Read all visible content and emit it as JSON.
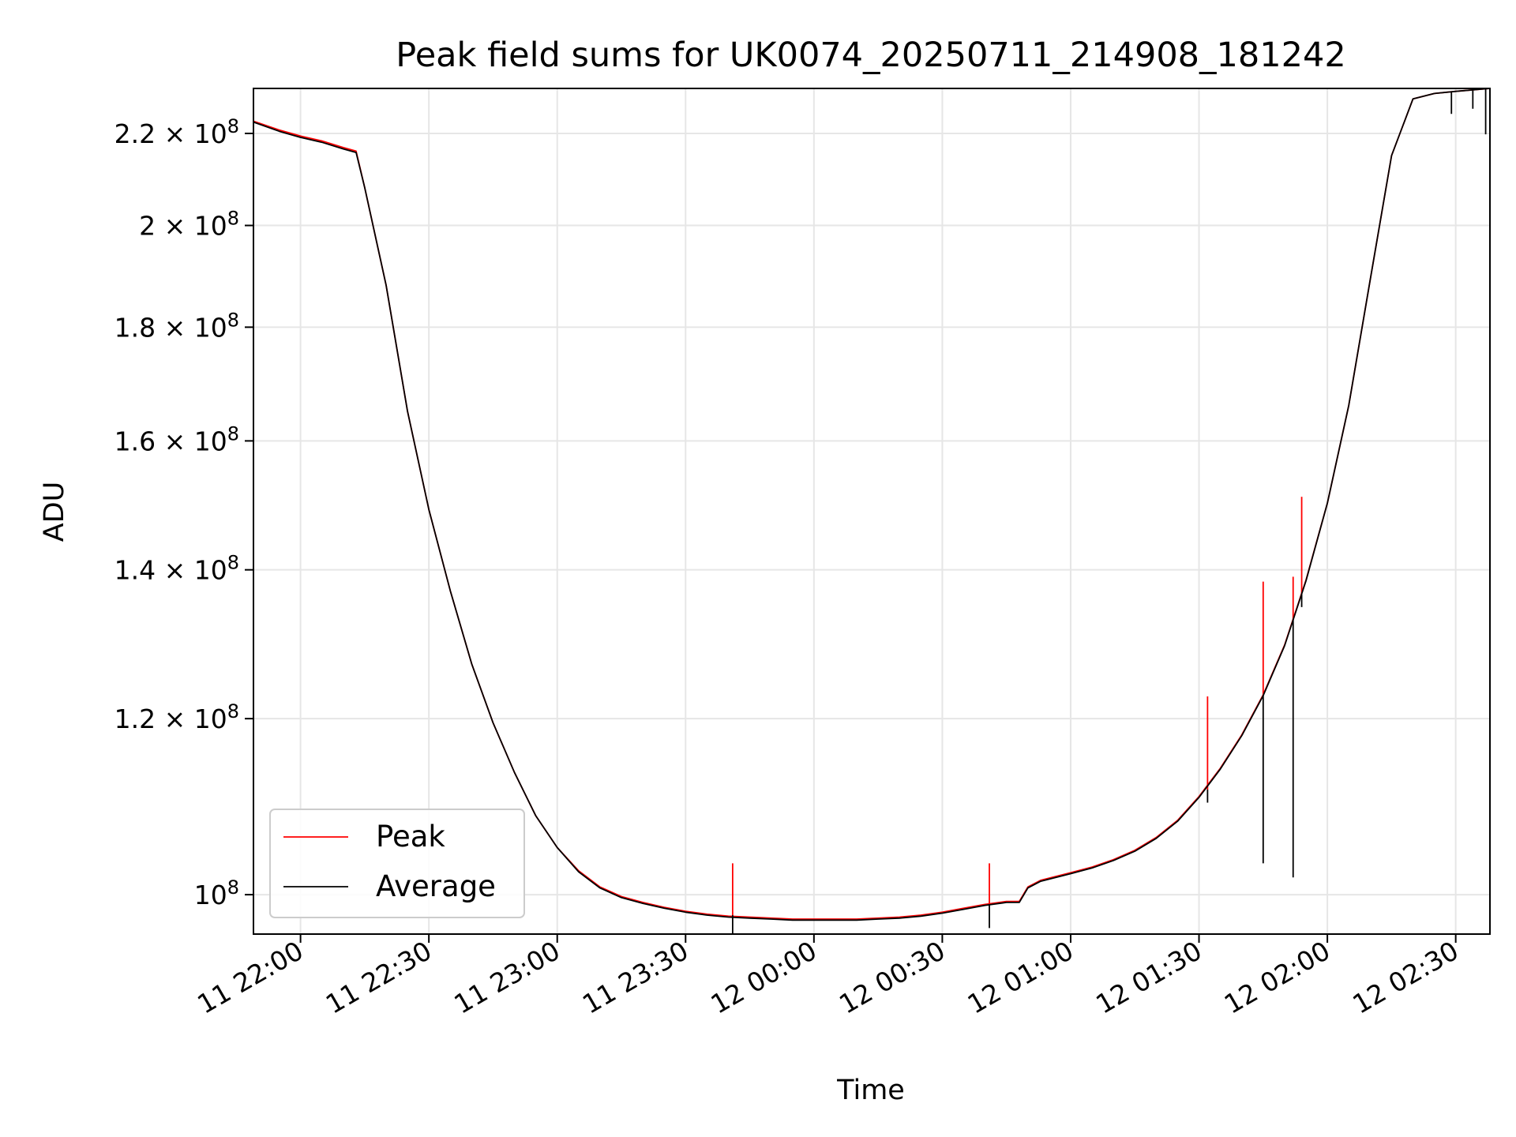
{
  "chart_data": {
    "type": "line",
    "title": "Peak field sums for UK0074_20250711_214908_181242",
    "xlabel": "Time",
    "ylabel": "ADU",
    "x_axis": {
      "type": "time",
      "range": [
        "2025-07-11 21:49",
        "2025-07-12 02:38"
      ],
      "ticks": [
        {
          "value": "2025-07-11 22:00",
          "label": "11 22:00"
        },
        {
          "value": "2025-07-11 22:30",
          "label": "11 22:30"
        },
        {
          "value": "2025-07-11 23:00",
          "label": "11 23:00"
        },
        {
          "value": "2025-07-11 23:30",
          "label": "11 23:30"
        },
        {
          "value": "2025-07-12 00:00",
          "label": "12 00:00"
        },
        {
          "value": "2025-07-12 00:30",
          "label": "12 00:30"
        },
        {
          "value": "2025-07-12 01:00",
          "label": "12 01:00"
        },
        {
          "value": "2025-07-12 01:30",
          "label": "12 01:30"
        },
        {
          "value": "2025-07-12 02:00",
          "label": "12 02:00"
        },
        {
          "value": "2025-07-12 02:30",
          "label": "12 02:30"
        }
      ]
    },
    "y_axis": {
      "scale": "log",
      "range": [
        96000000,
        230500000
      ],
      "ticks": [
        {
          "value": 100000000,
          "mantissa": "",
          "exp": "8"
        },
        {
          "value": 120000000,
          "mantissa": "1.2",
          "exp": "8"
        },
        {
          "value": 140000000,
          "mantissa": "1.4",
          "exp": "8"
        },
        {
          "value": 160000000,
          "mantissa": "1.6",
          "exp": "8"
        },
        {
          "value": 180000000,
          "mantissa": "1.8",
          "exp": "8"
        },
        {
          "value": 200000000,
          "mantissa": "2",
          "exp": "8"
        },
        {
          "value": 220000000,
          "mantissa": "2.2",
          "exp": "8"
        }
      ]
    },
    "grid": true,
    "legend": {
      "position": "lower-left"
    },
    "series": [
      {
        "name": "Peak",
        "color": "#ff0000",
        "points": [
          [
            "2025-07-11 21:49",
            222800000
          ],
          [
            "2025-07-11 21:55",
            220800000
          ],
          [
            "2025-07-11 22:00",
            219400000
          ],
          [
            "2025-07-11 22:05",
            218300000
          ],
          [
            "2025-07-11 22:10",
            216800000
          ],
          [
            "2025-07-11 22:13",
            216000000
          ],
          [
            "2025-07-11 22:15",
            208000000
          ],
          [
            "2025-07-11 22:20",
            188000000
          ],
          [
            "2025-07-11 22:25",
            165000000
          ],
          [
            "2025-07-11 22:30",
            149000000
          ],
          [
            "2025-07-11 22:35",
            137000000
          ],
          [
            "2025-07-11 22:40",
            127000000
          ],
          [
            "2025-07-11 22:45",
            119500000
          ],
          [
            "2025-07-11 22:50",
            113500000
          ],
          [
            "2025-07-11 22:55",
            108500000
          ],
          [
            "2025-07-11 23:00",
            105000000
          ],
          [
            "2025-07-11 23:05",
            102500000
          ],
          [
            "2025-07-11 23:10",
            100800000
          ],
          [
            "2025-07-11 23:15",
            99800000
          ],
          [
            "2025-07-11 23:20",
            99200000
          ],
          [
            "2025-07-11 23:25",
            98700000
          ],
          [
            "2025-07-11 23:30",
            98300000
          ],
          [
            "2025-07-11 23:35",
            98000000
          ],
          [
            "2025-07-11 23:40",
            97800000
          ],
          [
            "2025-07-11 23:45",
            97700000
          ],
          [
            "2025-07-11 23:50",
            97600000
          ],
          [
            "2025-07-11 23:55",
            97500000
          ],
          [
            "2025-07-12 00:00",
            97500000
          ],
          [
            "2025-07-12 00:05",
            97500000
          ],
          [
            "2025-07-12 00:10",
            97500000
          ],
          [
            "2025-07-12 00:15",
            97600000
          ],
          [
            "2025-07-12 00:20",
            97700000
          ],
          [
            "2025-07-12 00:25",
            97900000
          ],
          [
            "2025-07-12 00:30",
            98200000
          ],
          [
            "2025-07-12 00:35",
            98600000
          ],
          [
            "2025-07-12 00:40",
            99000000
          ],
          [
            "2025-07-12 00:45",
            99300000
          ],
          [
            "2025-07-12 00:48",
            99300000
          ],
          [
            "2025-07-12 00:50",
            100800000
          ],
          [
            "2025-07-12 00:53",
            101500000
          ],
          [
            "2025-07-12 01:00",
            102300000
          ],
          [
            "2025-07-12 01:05",
            102900000
          ],
          [
            "2025-07-12 01:10",
            103700000
          ],
          [
            "2025-07-12 01:15",
            104700000
          ],
          [
            "2025-07-12 01:20",
            106100000
          ],
          [
            "2025-07-12 01:25",
            108000000
          ],
          [
            "2025-07-12 01:30",
            110700000
          ],
          [
            "2025-07-12 01:35",
            114000000
          ],
          [
            "2025-07-12 01:40",
            118000000
          ],
          [
            "2025-07-12 01:45",
            123000000
          ],
          [
            "2025-07-12 01:50",
            129500000
          ],
          [
            "2025-07-12 01:55",
            138500000
          ],
          [
            "2025-07-12 02:00",
            150000000
          ],
          [
            "2025-07-12 02:05",
            166000000
          ],
          [
            "2025-07-12 02:10",
            189000000
          ],
          [
            "2025-07-12 02:15",
            215000000
          ],
          [
            "2025-07-12 02:20",
            228000000
          ],
          [
            "2025-07-12 02:25",
            229300000
          ],
          [
            "2025-07-12 02:30",
            229800000
          ],
          [
            "2025-07-12 02:38",
            230500000
          ]
        ],
        "spikes": [
          {
            "time": "2025-07-11 23:41",
            "from": 97900000,
            "to": 103300000
          },
          {
            "time": "2025-07-12 00:41",
            "from": 99000000,
            "to": 103300000
          },
          {
            "time": "2025-07-12 01:32",
            "from": 111500000,
            "to": 122800000
          },
          {
            "time": "2025-07-12 01:45",
            "from": 123000000,
            "to": 138300000
          },
          {
            "time": "2025-07-12 01:52",
            "from": 133000000,
            "to": 139000000
          },
          {
            "time": "2025-07-12 01:54",
            "from": 136500000,
            "to": 151000000
          }
        ]
      },
      {
        "name": "Average",
        "color": "#000000",
        "points": [
          [
            "2025-07-11 21:49",
            222600000
          ],
          [
            "2025-07-11 21:55",
            220500000
          ],
          [
            "2025-07-11 22:00",
            219100000
          ],
          [
            "2025-07-11 22:05",
            218000000
          ],
          [
            "2025-07-11 22:10",
            216500000
          ],
          [
            "2025-07-11 22:13",
            215700000
          ],
          [
            "2025-07-11 22:15",
            208000000
          ],
          [
            "2025-07-11 22:20",
            188000000
          ],
          [
            "2025-07-11 22:25",
            165000000
          ],
          [
            "2025-07-11 22:30",
            149000000
          ],
          [
            "2025-07-11 22:35",
            137000000
          ],
          [
            "2025-07-11 22:40",
            127000000
          ],
          [
            "2025-07-11 22:45",
            119500000
          ],
          [
            "2025-07-11 22:50",
            113500000
          ],
          [
            "2025-07-11 22:55",
            108500000
          ],
          [
            "2025-07-11 23:00",
            105000000
          ],
          [
            "2025-07-11 23:05",
            102400000
          ],
          [
            "2025-07-11 23:10",
            100700000
          ],
          [
            "2025-07-11 23:15",
            99700000
          ],
          [
            "2025-07-11 23:20",
            99100000
          ],
          [
            "2025-07-11 23:25",
            98600000
          ],
          [
            "2025-07-11 23:30",
            98200000
          ],
          [
            "2025-07-11 23:35",
            97900000
          ],
          [
            "2025-07-11 23:40",
            97700000
          ],
          [
            "2025-07-11 23:45",
            97600000
          ],
          [
            "2025-07-11 23:50",
            97500000
          ],
          [
            "2025-07-11 23:55",
            97400000
          ],
          [
            "2025-07-12 00:00",
            97400000
          ],
          [
            "2025-07-12 00:05",
            97400000
          ],
          [
            "2025-07-12 00:10",
            97400000
          ],
          [
            "2025-07-12 00:15",
            97500000
          ],
          [
            "2025-07-12 00:20",
            97600000
          ],
          [
            "2025-07-12 00:25",
            97800000
          ],
          [
            "2025-07-12 00:30",
            98100000
          ],
          [
            "2025-07-12 00:35",
            98500000
          ],
          [
            "2025-07-12 00:40",
            98900000
          ],
          [
            "2025-07-12 00:45",
            99200000
          ],
          [
            "2025-07-12 00:48",
            99200000
          ],
          [
            "2025-07-12 00:50",
            100700000
          ],
          [
            "2025-07-12 00:53",
            101400000
          ],
          [
            "2025-07-12 01:00",
            102200000
          ],
          [
            "2025-07-12 01:05",
            102800000
          ],
          [
            "2025-07-12 01:10",
            103600000
          ],
          [
            "2025-07-12 01:15",
            104600000
          ],
          [
            "2025-07-12 01:20",
            106000000
          ],
          [
            "2025-07-12 01:25",
            107900000
          ],
          [
            "2025-07-12 01:30",
            110600000
          ],
          [
            "2025-07-12 01:35",
            113900000
          ],
          [
            "2025-07-12 01:40",
            117900000
          ],
          [
            "2025-07-12 01:45",
            122900000
          ],
          [
            "2025-07-12 01:50",
            129400000
          ],
          [
            "2025-07-12 01:55",
            138400000
          ],
          [
            "2025-07-12 02:00",
            150000000
          ],
          [
            "2025-07-12 02:05",
            166000000
          ],
          [
            "2025-07-12 02:10",
            189000000
          ],
          [
            "2025-07-12 02:15",
            215000000
          ],
          [
            "2025-07-12 02:20",
            228000000
          ],
          [
            "2025-07-12 02:25",
            229300000
          ],
          [
            "2025-07-12 02:30",
            229800000
          ],
          [
            "2025-07-12 02:38",
            230500000
          ]
        ],
        "spikes": [
          {
            "time": "2025-07-11 23:41",
            "from": 97900000,
            "to": 96000000
          },
          {
            "time": "2025-07-12 00:41",
            "from": 99000000,
            "to": 96600000
          },
          {
            "time": "2025-07-12 01:32",
            "from": 111500000,
            "to": 110000000
          },
          {
            "time": "2025-07-12 01:45",
            "from": 123000000,
            "to": 103300000
          },
          {
            "time": "2025-07-12 01:52",
            "from": 133000000,
            "to": 101800000
          },
          {
            "time": "2025-07-12 01:54",
            "from": 136500000,
            "to": 134700000
          },
          {
            "time": "2025-07-12 02:29",
            "from": 229700000,
            "to": 224500000
          },
          {
            "time": "2025-07-12 02:34",
            "from": 230000000,
            "to": 225700000
          },
          {
            "time": "2025-07-12 02:37",
            "from": 230400000,
            "to": 219800000
          }
        ]
      }
    ]
  }
}
